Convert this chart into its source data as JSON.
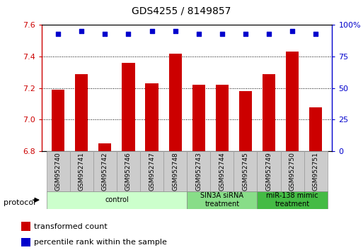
{
  "title": "GDS4255 / 8149857",
  "samples": [
    "GSM952740",
    "GSM952741",
    "GSM952742",
    "GSM952746",
    "GSM952747",
    "GSM952748",
    "GSM952743",
    "GSM952744",
    "GSM952745",
    "GSM952749",
    "GSM952750",
    "GSM952751"
  ],
  "bar_values": [
    7.19,
    7.29,
    6.85,
    7.36,
    7.23,
    7.42,
    7.22,
    7.22,
    7.18,
    7.29,
    7.43,
    7.08
  ],
  "percentile_values": [
    93,
    95,
    93,
    93,
    95,
    95,
    93,
    93,
    93,
    93,
    95,
    93
  ],
  "bar_color": "#cc0000",
  "dot_color": "#0000cc",
  "ylim_left": [
    6.8,
    7.6
  ],
  "yticks_left": [
    6.8,
    7.0,
    7.2,
    7.4,
    7.6
  ],
  "ylim_right": [
    0,
    100
  ],
  "yticks_right": [
    0,
    25,
    50,
    75,
    100
  ],
  "yright_labels": [
    "0",
    "25",
    "50",
    "75",
    "100%"
  ],
  "groups": [
    {
      "label": "control",
      "start": 0,
      "end": 6,
      "color": "#ccffcc"
    },
    {
      "label": "SIN3A siRNA\ntreatment",
      "start": 6,
      "end": 9,
      "color": "#88dd88"
    },
    {
      "label": "miR-138 mimic\ntreatment",
      "start": 9,
      "end": 12,
      "color": "#44bb44"
    }
  ],
  "protocol_label": "protocol",
  "legend_bar_label": "transformed count",
  "legend_dot_label": "percentile rank within the sample",
  "cell_bg_color": "#cccccc",
  "cell_edge_color": "#999999"
}
